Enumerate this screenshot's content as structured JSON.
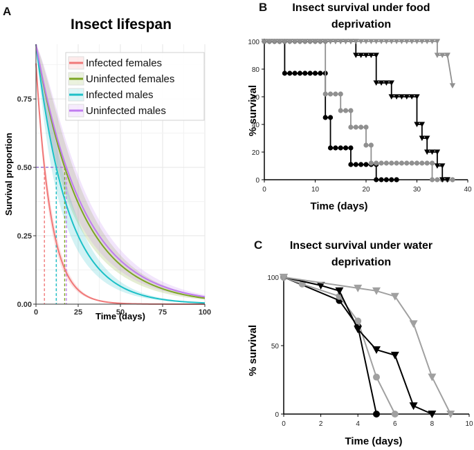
{
  "panels": {
    "A": {
      "letter": "A"
    },
    "B": {
      "letter": "B"
    },
    "C": {
      "letter": "C"
    }
  },
  "chart_data": [
    {
      "panel": "A",
      "type": "line",
      "title": "Insect lifespan",
      "xlabel": "Time (days)",
      "ylabel": "Survival proportion",
      "xlim": [
        0,
        100
      ],
      "ylim": [
        0,
        0.95
      ],
      "xticks": [
        0,
        25,
        50,
        75,
        100
      ],
      "yticks": [
        0,
        0.25,
        0.5,
        0.75
      ],
      "ytick_labels": [
        "0.00",
        "0.25",
        "0.50",
        "0.75"
      ],
      "grid": true,
      "legend_position": "top-right",
      "median_line_y": 0.5,
      "series": [
        {
          "name": "Infected females",
          "color": "#f07878",
          "start": 0.88,
          "median": 5,
          "band": 0.15
        },
        {
          "name": "Uninfected females",
          "color": "#7ca623",
          "start": 0.95,
          "median": 17,
          "band": 0.22
        },
        {
          "name": "Infected males",
          "color": "#1cc0c7",
          "start": 0.95,
          "median": 12,
          "band": 0.22
        },
        {
          "name": "Uninfected males",
          "color": "#c07cf0",
          "start": 0.95,
          "median": 18,
          "band": 0.22
        }
      ]
    },
    {
      "panel": "B",
      "type": "line",
      "title_lines": [
        "Insect survival under food",
        "deprivation"
      ],
      "xlabel": "Time (days)",
      "ylabel": "% survival",
      "xlim": [
        0,
        40
      ],
      "ylim": [
        0,
        100
      ],
      "xticks": [
        0,
        10,
        20,
        30,
        40
      ],
      "yticks": [
        0,
        20,
        40,
        60,
        80,
        100
      ],
      "series": [
        {
          "color": "#000000",
          "marker": "circle",
          "steps": [
            [
              0,
              100
            ],
            [
              4,
              100
            ],
            [
              4,
              77
            ],
            [
              12,
              77
            ],
            [
              12,
              45
            ],
            [
              13,
              45
            ],
            [
              13,
              23
            ],
            [
              17,
              23
            ],
            [
              17,
              11
            ],
            [
              22,
              11
            ],
            [
              22,
              0
            ],
            [
              26,
              0
            ]
          ]
        },
        {
          "color": "#909090",
          "marker": "circle",
          "steps": [
            [
              0,
              100
            ],
            [
              12,
              100
            ],
            [
              12,
              62
            ],
            [
              15,
              62
            ],
            [
              15,
              50
            ],
            [
              17,
              50
            ],
            [
              17,
              38
            ],
            [
              20,
              38
            ],
            [
              20,
              25
            ],
            [
              21,
              25
            ],
            [
              21,
              12
            ],
            [
              33,
              12
            ],
            [
              33,
              0
            ],
            [
              37,
              0
            ]
          ]
        },
        {
          "color": "#000000",
          "marker": "triangle",
          "steps": [
            [
              0,
              100
            ],
            [
              18,
              100
            ],
            [
              18,
              90
            ],
            [
              22,
              90
            ],
            [
              22,
              70
            ],
            [
              25,
              70
            ],
            [
              25,
              60
            ],
            [
              30,
              60
            ],
            [
              30,
              40
            ],
            [
              31,
              40
            ],
            [
              31,
              30
            ],
            [
              32,
              30
            ],
            [
              32,
              20
            ],
            [
              34,
              20
            ],
            [
              34,
              10
            ],
            [
              35,
              10
            ],
            [
              35,
              0
            ],
            [
              36,
              0
            ]
          ]
        },
        {
          "color": "#909090",
          "marker": "triangle",
          "steps": [
            [
              0,
              100
            ],
            [
              34,
              100
            ],
            [
              34,
              90
            ],
            [
              36,
              90
            ],
            [
              36,
              90
            ],
            [
              37,
              68
            ]
          ]
        }
      ]
    },
    {
      "panel": "C",
      "type": "line",
      "title_lines": [
        "Insect survival under water",
        "deprivation"
      ],
      "xlabel": "Time (days)",
      "ylabel": "% survival",
      "xlim": [
        0,
        10
      ],
      "ylim": [
        0,
        100
      ],
      "xticks": [
        0,
        2,
        4,
        6,
        8,
        10
      ],
      "yticks": [
        0,
        50,
        100
      ],
      "series": [
        {
          "color": "#000000",
          "marker": "circle",
          "x": [
            0,
            3,
            4,
            5
          ],
          "y": [
            100,
            83,
            64,
            0
          ]
        },
        {
          "color": "#a0a0a0",
          "marker": "circle",
          "x": [
            0,
            1,
            3,
            4,
            5,
            6
          ],
          "y": [
            100,
            95,
            86,
            68,
            27,
            0
          ]
        },
        {
          "color": "#000000",
          "marker": "triangle",
          "x": [
            0,
            2,
            3,
            4,
            5,
            6,
            7,
            8
          ],
          "y": [
            100,
            94,
            90,
            62,
            47,
            43,
            6,
            0
          ]
        },
        {
          "color": "#a0a0a0",
          "marker": "triangle",
          "x": [
            0,
            4,
            5,
            6,
            7,
            8,
            9
          ],
          "y": [
            100,
            92,
            90,
            86,
            66,
            27,
            0
          ]
        }
      ]
    }
  ]
}
